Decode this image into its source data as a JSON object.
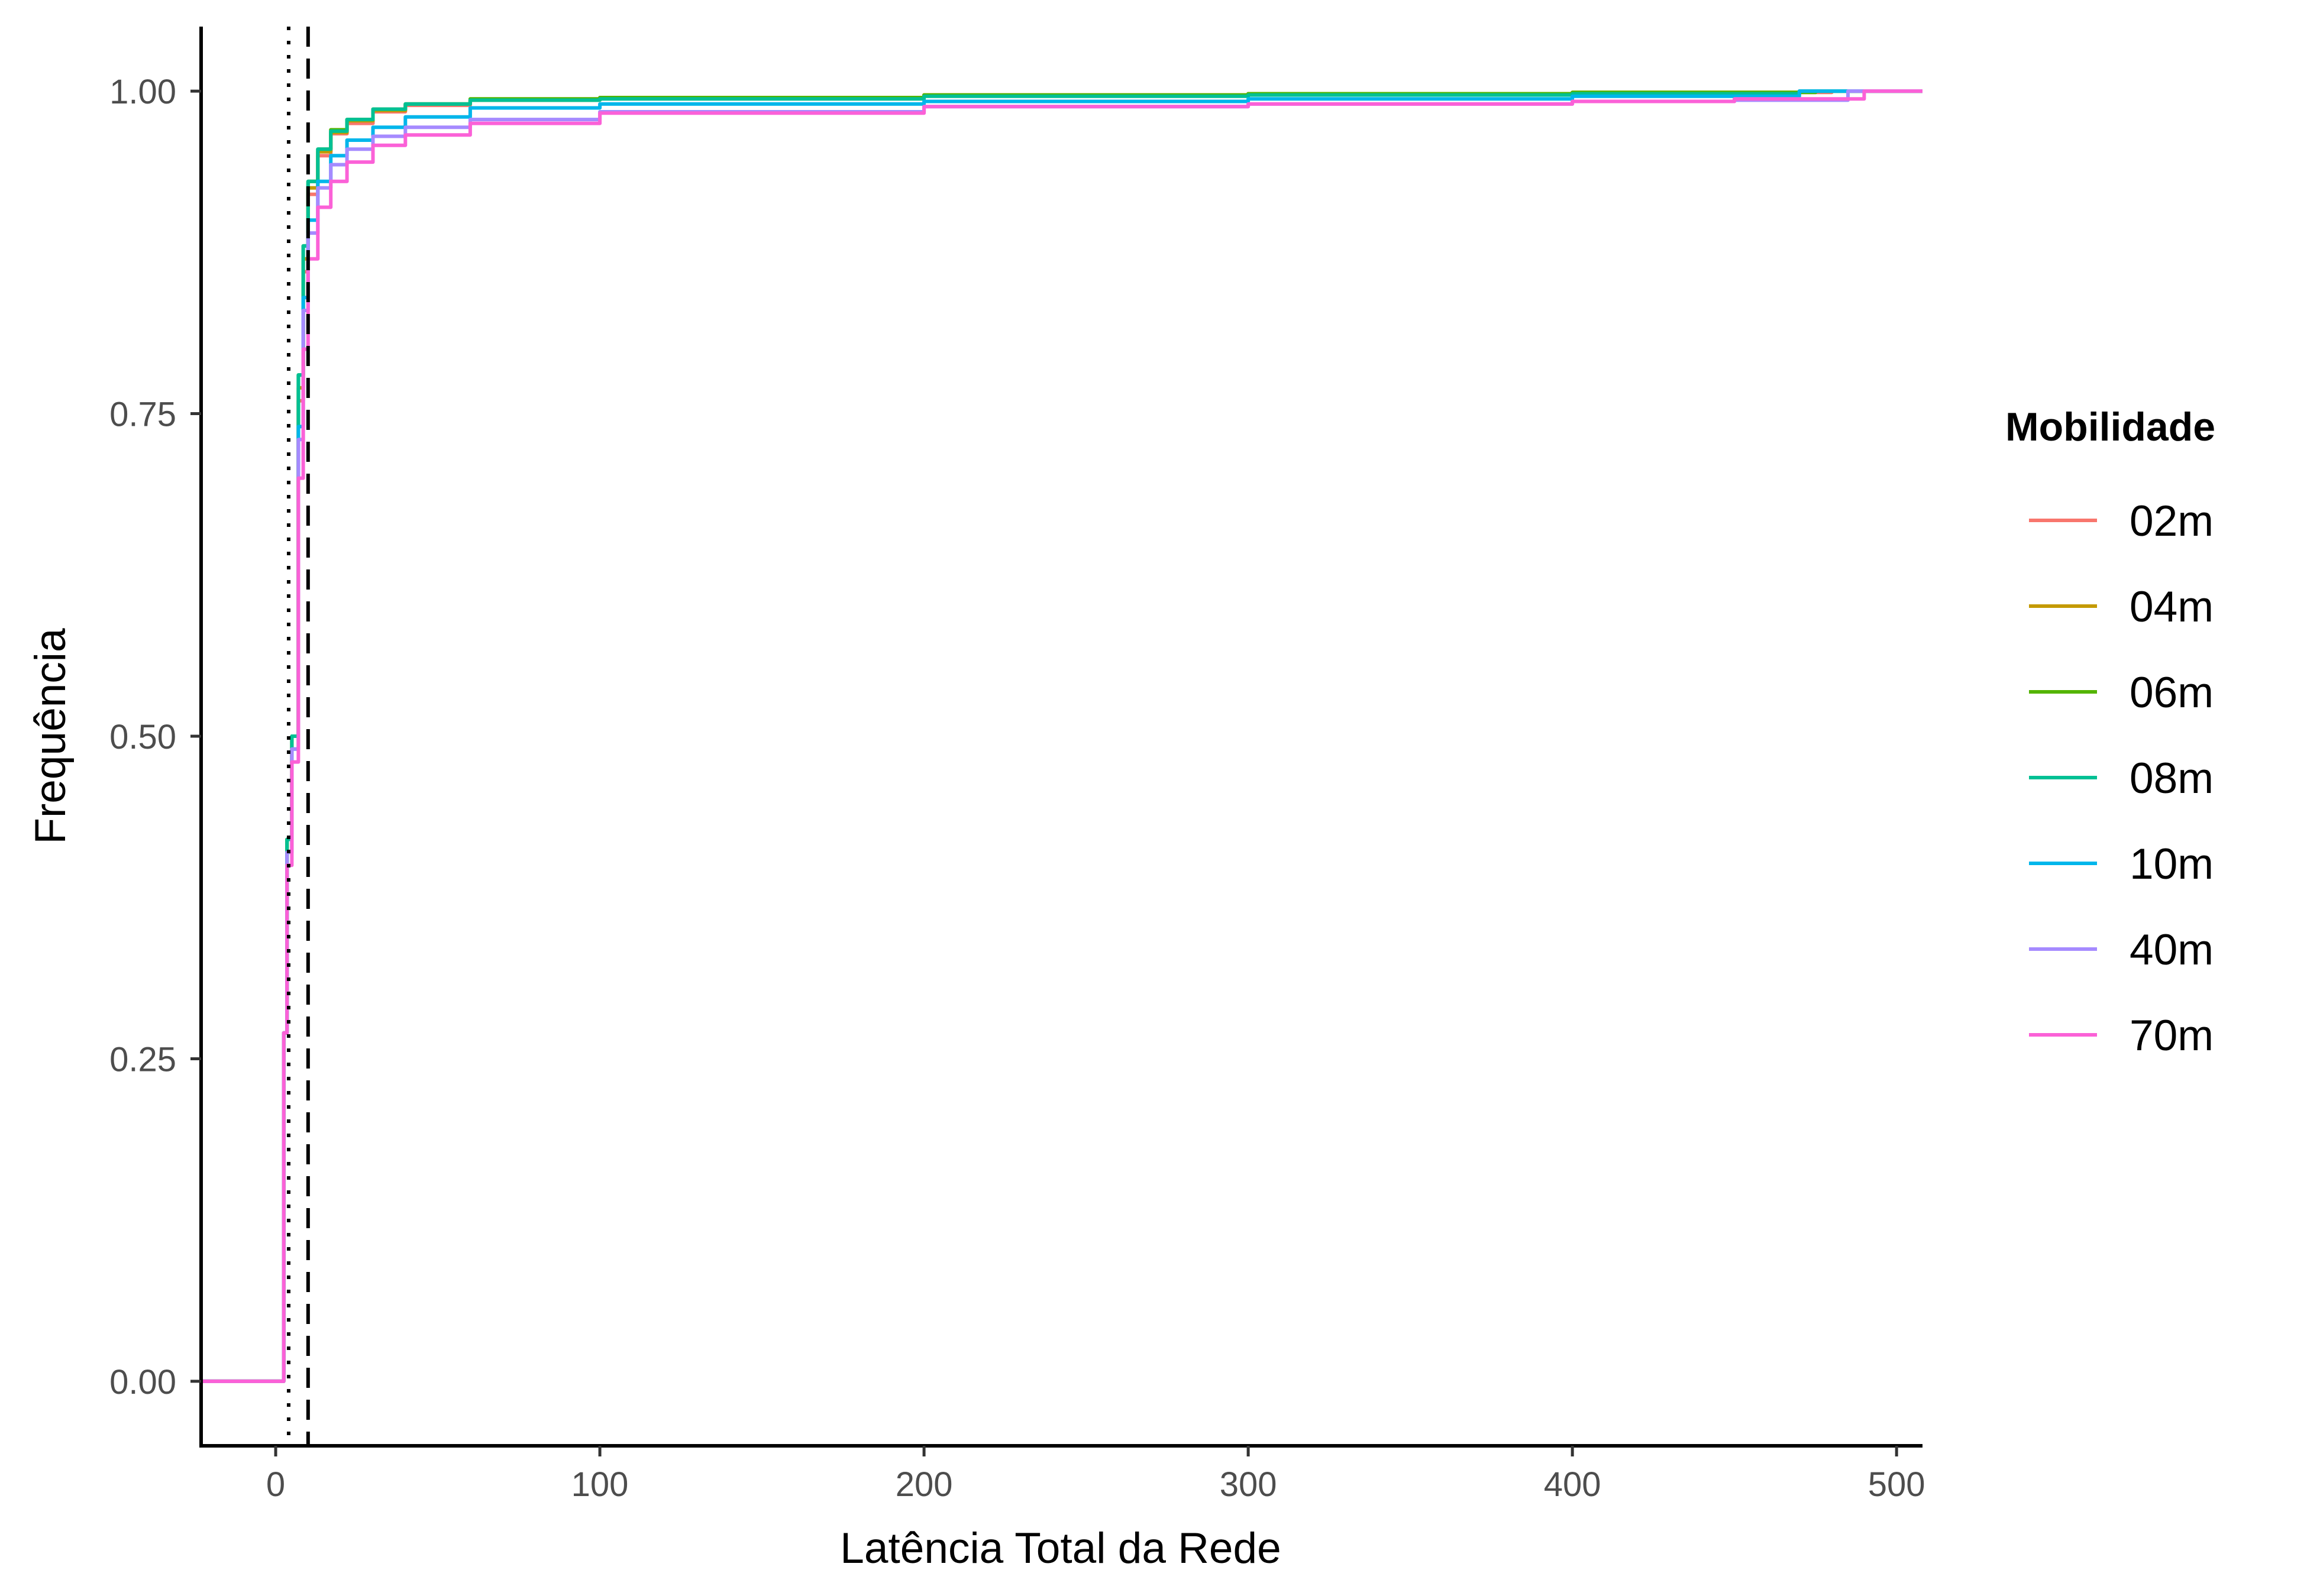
{
  "chart_data": {
    "type": "line",
    "xlabel": "Latência Total da Rede",
    "ylabel": "Frequência",
    "xlim": [
      -23,
      508
    ],
    "ylim": [
      -0.05,
      1.05
    ],
    "x_ticks": [
      "0",
      "100",
      "200",
      "300",
      "400",
      "500"
    ],
    "y_ticks": [
      "0.00",
      "0.25",
      "0.50",
      "0.75",
      "1.00"
    ],
    "grid": false,
    "legend": {
      "title": "Mobilidade",
      "position": "right"
    },
    "reference_lines": [
      {
        "x": 4,
        "style": "dotted"
      },
      {
        "x": 10,
        "style": "dashed"
      }
    ],
    "series": [
      {
        "name": "02m",
        "color": "#F8766D",
        "x": [
          -23,
          2,
          2.5,
          3.5,
          5,
          7,
          8.5,
          10,
          13,
          17,
          22,
          30,
          40,
          60,
          100,
          200,
          300,
          400,
          480,
          508
        ],
        "y": [
          0,
          0,
          0.27,
          0.42,
          0.5,
          0.76,
          0.86,
          0.92,
          0.95,
          0.967,
          0.975,
          0.984,
          0.989,
          0.993,
          0.995,
          0.997,
          0.998,
          0.999,
          1.0,
          1.0
        ]
      },
      {
        "name": "04m",
        "color": "#C49A00",
        "x": [
          -23,
          2,
          2.5,
          3.5,
          5,
          7,
          8.5,
          10,
          13,
          17,
          22,
          30,
          40,
          60,
          100,
          200,
          300,
          400,
          470,
          508
        ],
        "y": [
          0,
          0,
          0.27,
          0.42,
          0.5,
          0.77,
          0.87,
          0.925,
          0.953,
          0.968,
          0.977,
          0.985,
          0.99,
          0.993,
          0.995,
          0.997,
          0.998,
          0.999,
          1.0,
          1.0
        ]
      },
      {
        "name": "06m",
        "color": "#53B400",
        "x": [
          -23,
          2,
          2.5,
          3.5,
          5,
          7,
          8.5,
          10,
          13,
          17,
          22,
          30,
          40,
          60,
          100,
          200,
          300,
          400,
          475,
          508
        ],
        "y": [
          0,
          0,
          0.27,
          0.42,
          0.5,
          0.78,
          0.88,
          0.93,
          0.955,
          0.97,
          0.978,
          0.986,
          0.99,
          0.994,
          0.995,
          0.997,
          0.998,
          0.999,
          1.0,
          1.0
        ]
      },
      {
        "name": "08m",
        "color": "#00C094",
        "x": [
          -23,
          2,
          2.5,
          3.5,
          5,
          7,
          8.5,
          10,
          13,
          17,
          22,
          30,
          40,
          60,
          100,
          200,
          300,
          400,
          470,
          508
        ],
        "y": [
          0,
          0,
          0.27,
          0.42,
          0.5,
          0.78,
          0.88,
          0.93,
          0.955,
          0.969,
          0.978,
          0.986,
          0.99,
          0.993,
          0.994,
          0.996,
          0.997,
          0.998,
          1.0,
          1.0
        ]
      },
      {
        "name": "10m",
        "color": "#00B6EB",
        "x": [
          -23,
          2,
          2.5,
          3.5,
          5,
          7,
          8.5,
          10,
          13,
          17,
          22,
          30,
          40,
          60,
          100,
          200,
          300,
          400,
          470,
          508
        ],
        "y": [
          0,
          0,
          0.27,
          0.41,
          0.49,
          0.74,
          0.84,
          0.9,
          0.93,
          0.95,
          0.962,
          0.972,
          0.98,
          0.987,
          0.99,
          0.992,
          0.994,
          0.996,
          1.0,
          1.0
        ]
      },
      {
        "name": "40m",
        "color": "#A58AFF",
        "x": [
          -23,
          2,
          2.5,
          3.5,
          5,
          7,
          8.5,
          10,
          13,
          17,
          22,
          30,
          40,
          60,
          100,
          200,
          300,
          400,
          450,
          485,
          508
        ],
        "y": [
          0,
          0,
          0.27,
          0.41,
          0.49,
          0.73,
          0.83,
          0.89,
          0.925,
          0.943,
          0.955,
          0.965,
          0.972,
          0.978,
          0.984,
          0.988,
          0.99,
          0.992,
          0.993,
          1.0,
          1.0
        ]
      },
      {
        "name": "70m",
        "color": "#FB61D7",
        "x": [
          -23,
          2,
          2.5,
          3.5,
          5,
          7,
          8.5,
          10,
          13,
          17,
          22,
          30,
          40,
          60,
          100,
          200,
          300,
          400,
          450,
          490,
          508
        ],
        "y": [
          0,
          0,
          0.27,
          0.4,
          0.48,
          0.7,
          0.8,
          0.87,
          0.91,
          0.93,
          0.945,
          0.958,
          0.966,
          0.975,
          0.983,
          0.988,
          0.99,
          0.992,
          0.994,
          1.0,
          1.0
        ]
      }
    ]
  }
}
